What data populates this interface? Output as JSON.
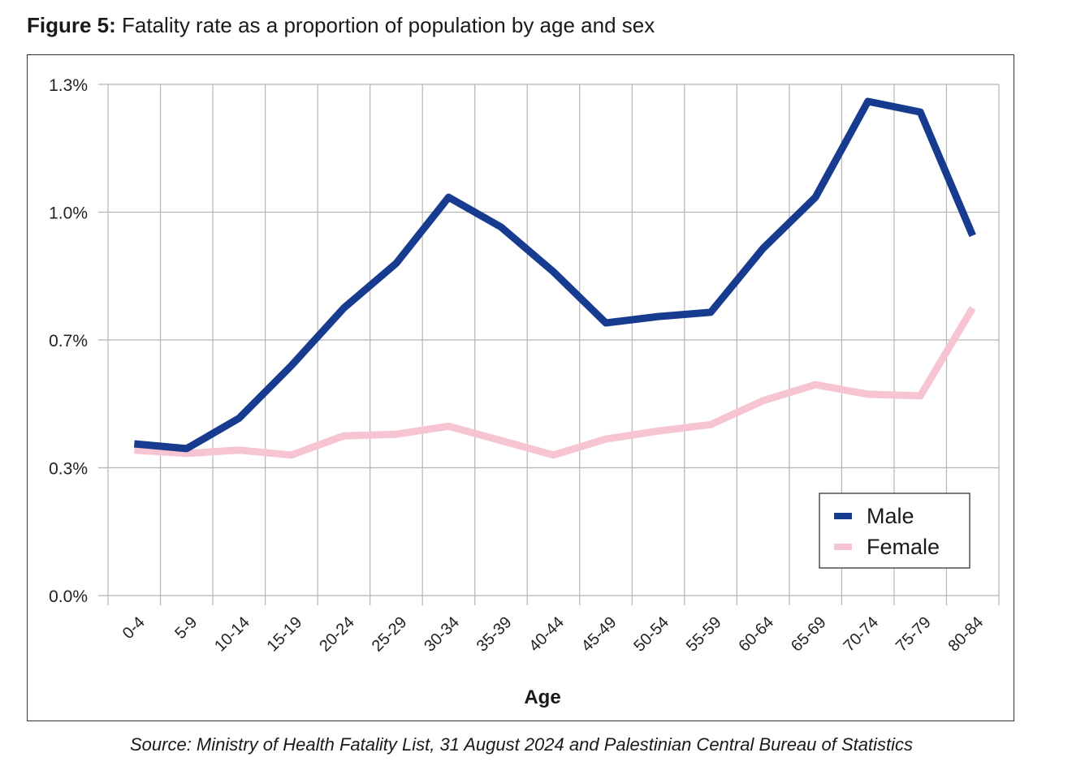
{
  "figure": {
    "label": "Figure 5:",
    "title": "Fatality rate as a proportion of population by age and sex",
    "source": "Source: Ministry of Health Fatality List, 31 August 2024 and Palestinian Central Bureau of Statistics"
  },
  "chart_data": {
    "type": "line",
    "title": "Fatality rate as a proportion of population by age and sex",
    "xlabel": "Age",
    "ylabel": "",
    "categories": [
      "0-4",
      "5-9",
      "10-14",
      "15-19",
      "20-24",
      "25-29",
      "30-34",
      "35-39",
      "40-44",
      "45-49",
      "50-54",
      "55-59",
      "60-64",
      "65-69",
      "70-74",
      "75-79",
      "80-84"
    ],
    "y_ticks": [
      0.0,
      0.3,
      0.7,
      1.0,
      1.3
    ],
    "y_tick_labels": [
      "0.0%",
      "0.3%",
      "0.7%",
      "1.0%",
      "1.3%"
    ],
    "ylim": [
      0.0,
      1.3
    ],
    "grid": true,
    "legend_position": "bottom-right",
    "series": [
      {
        "name": "Male",
        "color": "#163b8f",
        "values": [
          0.375,
          0.36,
          0.455,
          0.62,
          0.775,
          0.88,
          1.035,
          0.965,
          0.86,
          0.74,
          0.755,
          0.765,
          0.915,
          1.035,
          1.26,
          1.235,
          0.945
        ]
      },
      {
        "name": "Female",
        "color": "#f7c5d2",
        "values": [
          0.355,
          0.345,
          0.355,
          0.34,
          0.4,
          0.405,
          0.43,
          0.385,
          0.34,
          0.39,
          0.415,
          0.435,
          0.51,
          0.56,
          0.53,
          0.525,
          0.775
        ]
      }
    ]
  }
}
